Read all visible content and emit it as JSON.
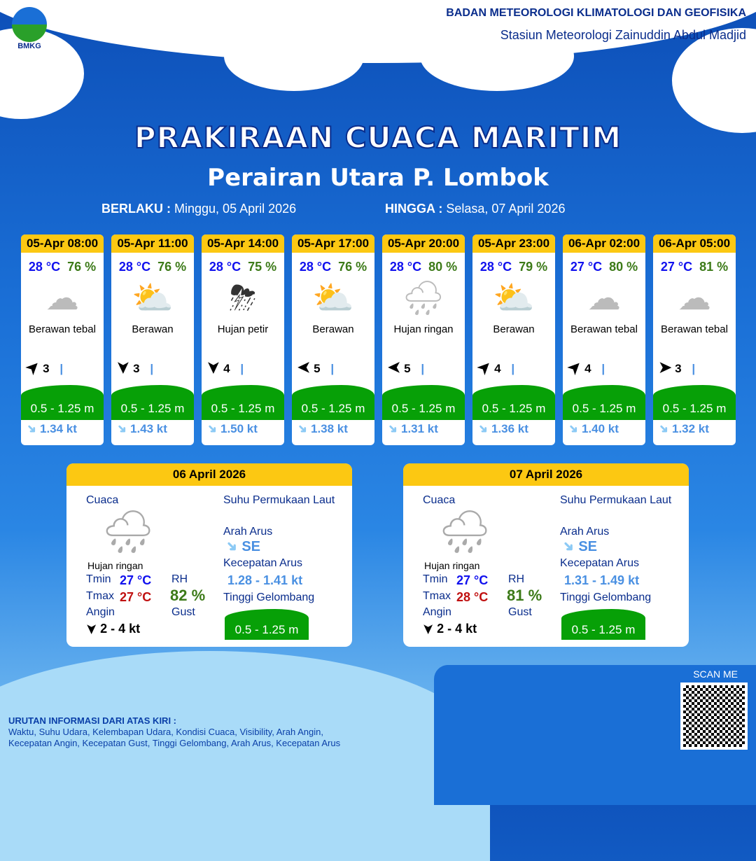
{
  "header": {
    "org": "BADAN METEOROLOGI KLIMATOLOGI DAN GEOFISIKA",
    "station": "Stasiun Meteorologi Zainuddin Abdul Madjid",
    "logo": "BMKG"
  },
  "title": "PRAKIRAAN CUACA MARITIM",
  "subtitle": "Perairan Utara P. Lombok",
  "valid": {
    "from_label": "BERLAKU :",
    "from": "Minggu, 05 April 2026",
    "to_label": "HINGGA :",
    "to": "Selasa, 07 April 2026"
  },
  "forecasts": [
    {
      "time": "05-Apr 08:00",
      "temp": "28 °C",
      "rh": "76 %",
      "icon": "cloudy-icon",
      "cond": "Berawan tebal",
      "wind": "3",
      "wind_dir": "NE",
      "wave": "0.5 - 1.25 m",
      "current": "1.34 kt"
    },
    {
      "time": "05-Apr 11:00",
      "temp": "28 °C",
      "rh": "76 %",
      "icon": "partly-cloudy-icon",
      "cond": "Berawan",
      "wind": "3",
      "wind_dir": "S",
      "wave": "0.5 - 1.25 m",
      "current": "1.43 kt"
    },
    {
      "time": "05-Apr 14:00",
      "temp": "28 °C",
      "rh": "75 %",
      "icon": "thunderstorm-icon",
      "cond": "Hujan petir",
      "wind": "4",
      "wind_dir": "S",
      "wave": "0.5 - 1.25 m",
      "current": "1.50 kt"
    },
    {
      "time": "05-Apr 17:00",
      "temp": "28 °C",
      "rh": "76 %",
      "icon": "partly-cloudy-icon",
      "cond": "Berawan",
      "wind": "5",
      "wind_dir": "W",
      "wave": "0.5 - 1.25 m",
      "current": "1.38 kt"
    },
    {
      "time": "05-Apr 20:00",
      "temp": "28 °C",
      "rh": "80 %",
      "icon": "light-rain-icon",
      "cond": "Hujan ringan",
      "wind": "5",
      "wind_dir": "W",
      "wave": "0.5 - 1.25 m",
      "current": "1.31 kt"
    },
    {
      "time": "05-Apr 23:00",
      "temp": "28 °C",
      "rh": "79 %",
      "icon": "partly-cloudy-icon",
      "cond": "Berawan",
      "wind": "4",
      "wind_dir": "NE",
      "wave": "0.5 - 1.25 m",
      "current": "1.36 kt"
    },
    {
      "time": "06-Apr 02:00",
      "temp": "27 °C",
      "rh": "80 %",
      "icon": "cloudy-icon",
      "cond": "Berawan tebal",
      "wind": "4",
      "wind_dir": "NE",
      "wave": "0.5 - 1.25 m",
      "current": "1.40 kt"
    },
    {
      "time": "06-Apr 05:00",
      "temp": "27 °C",
      "rh": "81 %",
      "icon": "cloudy-icon",
      "cond": "Berawan tebal",
      "wind": "3",
      "wind_dir": "E",
      "wave": "0.5 - 1.25 m",
      "current": "1.32 kt"
    }
  ],
  "labels": {
    "cuaca": "Cuaca",
    "sst": "Suhu Permukaan Laut",
    "arah": "Arah Arus",
    "kec": "Kecepatan Arus",
    "tinggi": "Tinggi Gelombang",
    "tmin": "Tmin",
    "tmax": "Tmax",
    "rh": "RH",
    "angin": "Angin",
    "gust": "Gust"
  },
  "days": [
    {
      "date": "06 April 2026",
      "cond": "Hujan ringan",
      "tmin": "27 °C",
      "tmax": "27 °C",
      "rh": "82 %",
      "wind": "2  - 4 kt",
      "cur_dir": "SE",
      "cur_speed": "1.28 - 1.41 kt",
      "wave": "0.5 - 1.25 m"
    },
    {
      "date": "07 April 2026",
      "cond": "Hujan ringan",
      "tmin": "27 °C",
      "tmax": "28 °C",
      "rh": "81 %",
      "wind": "2  - 4 kt",
      "cur_dir": "SE",
      "cur_speed": "1.31 - 1.49 kt",
      "wave": "0.5 - 1.25 m"
    }
  ],
  "scan": "SCAN ME",
  "footer": {
    "line1": "URUTAN INFORMASI DARI ATAS KIRI :",
    "line2": "Waktu, Suhu Udara, Kelembapan Udara, Kondisi Cuaca, Visibility, Arah Angin,",
    "line3": "Kecepatan Angin, Kecepatan Gust, Tinggi Gelombang, Arah Arus, Kecepatan Arus"
  }
}
